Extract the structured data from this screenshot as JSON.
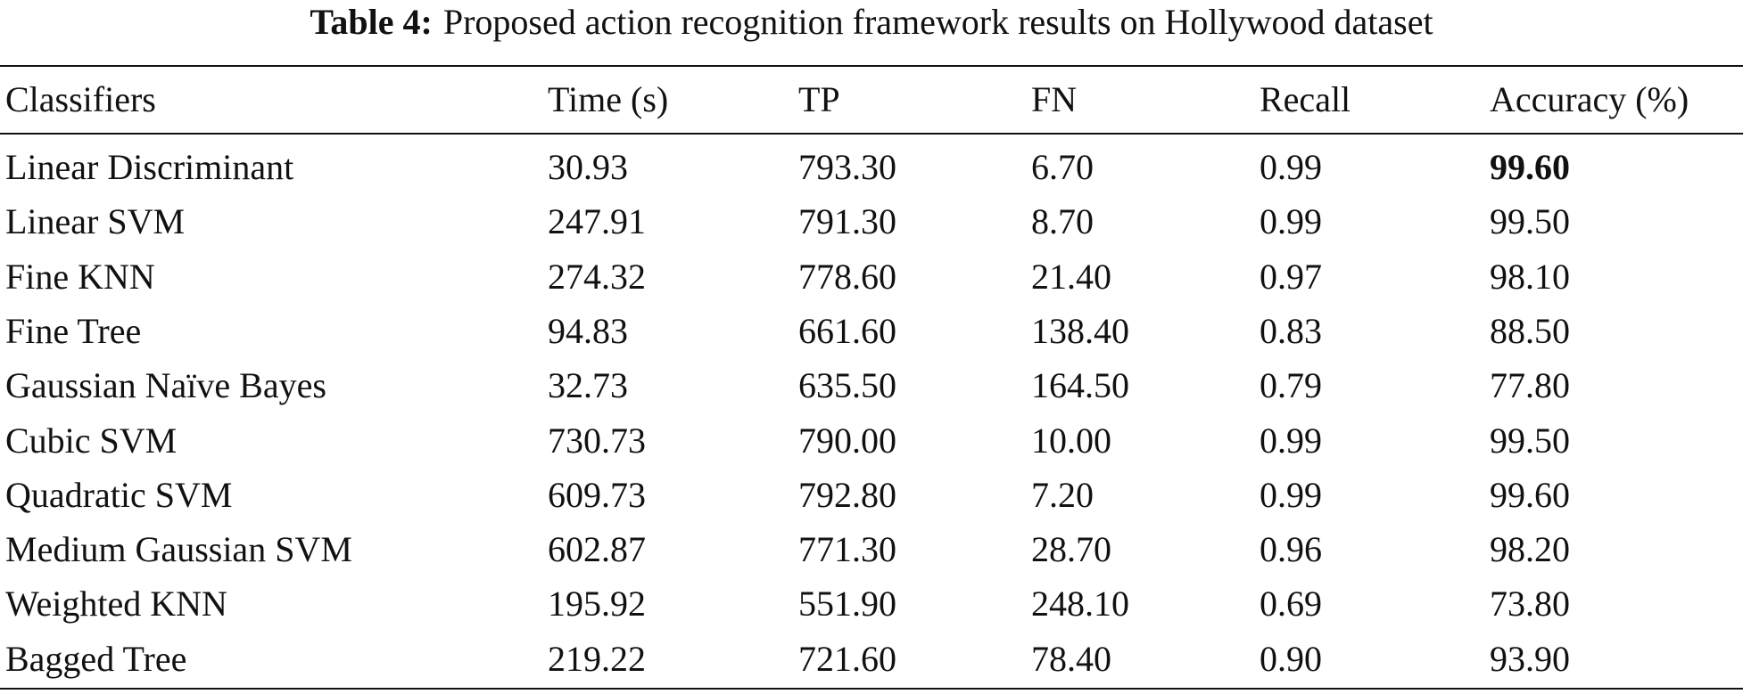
{
  "caption": {
    "label": "Table 4:",
    "text": "Proposed action recognition framework results on Hollywood dataset"
  },
  "table": {
    "header": [
      "Classifiers",
      "Time (s)",
      "TP",
      "FN",
      "Recall",
      "Accuracy (%)"
    ],
    "rows": [
      [
        "Linear Discriminant",
        "30.93",
        "793.30",
        "6.70",
        "0.99",
        "99.60"
      ],
      [
        "Linear SVM",
        "247.91",
        "791.30",
        "8.70",
        "0.99",
        "99.50"
      ],
      [
        "Fine KNN",
        "274.32",
        "778.60",
        "21.40",
        "0.97",
        "98.10"
      ],
      [
        "Fine Tree",
        "94.83",
        "661.60",
        "138.40",
        "0.83",
        "88.50"
      ],
      [
        "Gaussian Naïve Bayes",
        "32.73",
        "635.50",
        "164.50",
        "0.79",
        "77.80"
      ],
      [
        "Cubic SVM",
        "730.73",
        "790.00",
        "10.00",
        "0.99",
        "99.50"
      ],
      [
        "Quadratic SVM",
        "609.73",
        "792.80",
        "7.20",
        "0.99",
        "99.60"
      ],
      [
        "Medium Gaussian SVM",
        "602.87",
        "771.30",
        "28.70",
        "0.96",
        "98.20"
      ],
      [
        "Weighted KNN",
        "195.92",
        "551.90",
        "248.10",
        "0.69",
        "73.80"
      ],
      [
        "Bagged Tree",
        "219.22",
        "721.60",
        "78.40",
        "0.90",
        "93.90"
      ]
    ]
  }
}
